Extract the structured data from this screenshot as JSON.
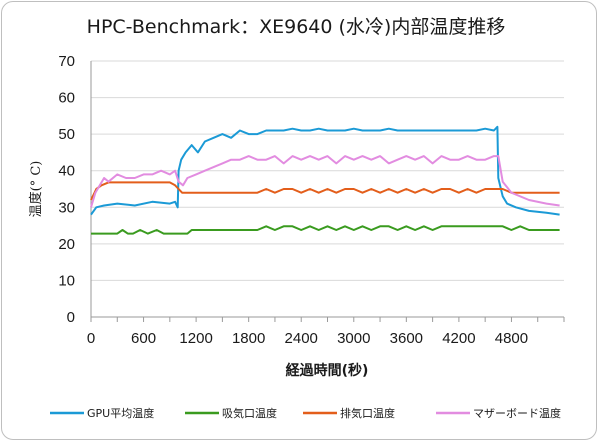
{
  "chart_data": {
    "type": "line",
    "title": "HPC-Benchmark：XE9640 (水冷)内部温度推移",
    "xlabel": "経過時間(秒)",
    "ylabel": "温度(° C)",
    "xlim": [
      0,
      5400
    ],
    "ylim": [
      0,
      70
    ],
    "grid": true,
    "legend_position": "bottom",
    "x_ticks": [
      "0",
      "600",
      "1200",
      "1800",
      "2400",
      "3000",
      "3600",
      "4200",
      "4800"
    ],
    "x_tick_values": [
      0,
      600,
      1200,
      1800,
      2400,
      3000,
      3600,
      4200,
      4800
    ],
    "y_ticks": [
      "0",
      "10",
      "20",
      "30",
      "40",
      "50",
      "60",
      "70"
    ],
    "y_tick_values": [
      0,
      10,
      20,
      30,
      40,
      50,
      60,
      70
    ],
    "series": [
      {
        "name": "GPU平均温度",
        "color": "#1b9ad6",
        "x": [
          0,
          60,
          150,
          300,
          500,
          700,
          900,
          960,
          990,
          1000,
          1030,
          1080,
          1150,
          1220,
          1300,
          1400,
          1500,
          1600,
          1700,
          1800,
          1900,
          2000,
          2100,
          2200,
          2300,
          2400,
          2500,
          2600,
          2700,
          2800,
          2900,
          3000,
          3100,
          3200,
          3300,
          3400,
          3500,
          3600,
          3700,
          3800,
          3900,
          4000,
          4100,
          4200,
          4300,
          4400,
          4500,
          4600,
          4640,
          4650,
          4700,
          4750,
          4850,
          5000,
          5200,
          5350
        ],
        "values": [
          28,
          30,
          30.5,
          31,
          30.5,
          31.5,
          31,
          31.5,
          30,
          40,
          43,
          45,
          47,
          45,
          48,
          49,
          50,
          49,
          51,
          50,
          50,
          51,
          51,
          51,
          51.5,
          51,
          51,
          51.5,
          51,
          51,
          51,
          51.5,
          51,
          51,
          51,
          51.5,
          51,
          51,
          51,
          51,
          51,
          51,
          51,
          51,
          51,
          51,
          51.5,
          51,
          52,
          38,
          33,
          31,
          30,
          29,
          28.5,
          28
        ]
      },
      {
        "name": "吸気口温度",
        "color": "#3a9b1f",
        "x": [
          0,
          100,
          200,
          300,
          360,
          420,
          480,
          560,
          650,
          750,
          830,
          900,
          1000,
          1100,
          1150,
          1200,
          1300,
          1400,
          1500,
          1600,
          1700,
          1800,
          1900,
          2000,
          2100,
          2200,
          2300,
          2400,
          2500,
          2600,
          2700,
          2800,
          2900,
          3000,
          3100,
          3200,
          3300,
          3400,
          3500,
          3600,
          3700,
          3800,
          3900,
          4000,
          4100,
          4200,
          4300,
          4400,
          4500,
          4600,
          4700,
          4800,
          4900,
          5000,
          5100,
          5200,
          5350
        ],
        "values": [
          22.8,
          22.8,
          22.8,
          22.8,
          23.8,
          22.8,
          22.8,
          23.8,
          22.8,
          23.8,
          22.8,
          22.8,
          22.8,
          22.8,
          23.8,
          23.8,
          23.8,
          23.8,
          23.8,
          23.8,
          23.8,
          23.8,
          23.8,
          24.8,
          23.8,
          24.8,
          24.8,
          23.8,
          24.8,
          23.8,
          24.8,
          23.8,
          24.8,
          23.8,
          24.8,
          23.8,
          24.8,
          24.8,
          23.8,
          24.8,
          23.8,
          24.8,
          23.8,
          24.8,
          24.8,
          24.8,
          24.8,
          24.8,
          24.8,
          24.8,
          24.8,
          23.8,
          24.8,
          23.8,
          23.8,
          23.8,
          23.8
        ]
      },
      {
        "name": "排気口温度",
        "color": "#e35e1b",
        "x": [
          0,
          60,
          120,
          200,
          300,
          400,
          500,
          600,
          700,
          800,
          900,
          960,
          1000,
          1040,
          1100,
          1300,
          1500,
          1700,
          1900,
          2000,
          2100,
          2200,
          2300,
          2400,
          2500,
          2600,
          2700,
          2800,
          2900,
          3000,
          3100,
          3200,
          3300,
          3400,
          3500,
          3600,
          3700,
          3800,
          3900,
          4000,
          4100,
          4200,
          4300,
          4400,
          4500,
          4600,
          4650,
          4700,
          4800,
          5000,
          5200,
          5350
        ],
        "values": [
          32,
          35,
          36,
          36.8,
          36.8,
          36.8,
          36.8,
          36.8,
          36.8,
          36.8,
          36.8,
          36,
          35,
          34,
          34,
          34,
          34,
          34,
          34,
          35,
          34,
          35,
          35,
          34,
          35,
          34,
          35,
          34,
          35,
          35,
          34,
          35,
          34,
          35,
          34,
          35,
          34,
          35,
          34,
          35,
          35,
          34,
          35,
          34,
          35,
          35,
          35,
          35,
          34,
          34,
          34,
          34
        ]
      },
      {
        "name": "マザーボード温度",
        "color": "#e28ce0",
        "x": [
          0,
          50,
          100,
          150,
          200,
          300,
          400,
          500,
          600,
          700,
          800,
          900,
          960,
          1000,
          1050,
          1100,
          1200,
          1300,
          1400,
          1500,
          1600,
          1700,
          1800,
          1900,
          2000,
          2100,
          2200,
          2300,
          2400,
          2500,
          2600,
          2700,
          2800,
          2900,
          3000,
          3100,
          3200,
          3300,
          3400,
          3500,
          3600,
          3700,
          3800,
          3900,
          4000,
          4100,
          4200,
          4300,
          4400,
          4500,
          4600,
          4650,
          4700,
          4800,
          5000,
          5200,
          5350
        ],
        "values": [
          30,
          34,
          36,
          38,
          37,
          39,
          38,
          38,
          39,
          39,
          40,
          39,
          40,
          37,
          36,
          38,
          39,
          40,
          41,
          42,
          43,
          43,
          44,
          43,
          43,
          44,
          42,
          44,
          43,
          44,
          43,
          44,
          42,
          44,
          43,
          44,
          43,
          44,
          42,
          43,
          44,
          43,
          44,
          42,
          44,
          43,
          43,
          44,
          43,
          43,
          44,
          44,
          37,
          34,
          32,
          31,
          30.5
        ]
      }
    ]
  }
}
